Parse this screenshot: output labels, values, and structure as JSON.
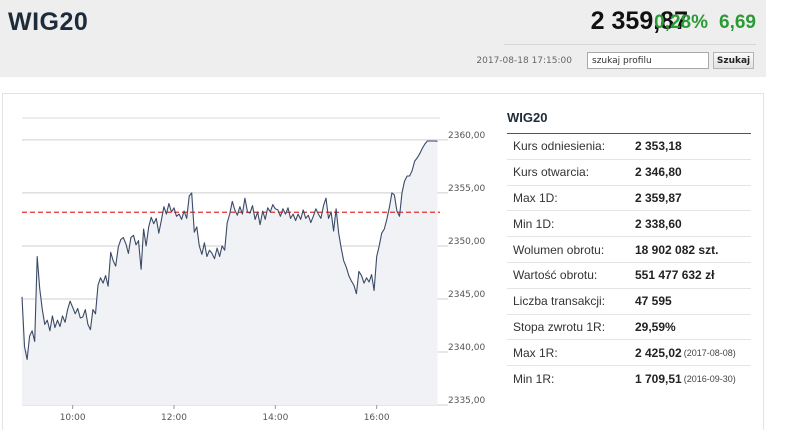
{
  "header": {
    "title": "WIG20",
    "price": "2 359,87",
    "change_pct": "0,28%",
    "change_abs": "6,69",
    "timestamp": "2017-08-18 17:15:00",
    "search_value": "szukaj profilu",
    "search_button": "Szukaj",
    "change_color": "#2a9a35"
  },
  "stats": {
    "title": "WIG20",
    "rows": [
      {
        "label": "Kurs odniesienia:",
        "value": "2 353,18",
        "date": ""
      },
      {
        "label": "Kurs otwarcia:",
        "value": "2 346,80",
        "date": ""
      },
      {
        "label": "Max 1D:",
        "value": "2 359,87",
        "date": ""
      },
      {
        "label": "Min 1D:",
        "value": "2 338,60",
        "date": ""
      },
      {
        "label": "Wolumen obrotu:",
        "value": "18 902 082 szt.",
        "date": ""
      },
      {
        "label": "Wartość obrotu:",
        "value": "551 477 632 zł",
        "date": ""
      },
      {
        "label": "Liczba transakcji:",
        "value": "47 595",
        "date": ""
      },
      {
        "label": "Stopa zwrotu 1R:",
        "value": "29,59%",
        "date": ""
      },
      {
        "label": "Max 1R:",
        "value": "2 425,02",
        "date": "(2017-08-08)"
      },
      {
        "label": "Min 1R:",
        "value": "1 709,51",
        "date": "(2016-09-30)"
      }
    ]
  },
  "chart_data": {
    "type": "area",
    "title": "",
    "xlabel": "",
    "ylabel": "",
    "x_tick_labels": [
      "10:00",
      "12:00",
      "14:00",
      "16:00"
    ],
    "y_tick_labels": [
      "2360,00",
      "2355,00",
      "2350,00",
      "2345,00",
      "2340,00",
      "2335,00"
    ],
    "y_ticks": [
      2360,
      2355,
      2350,
      2345,
      2340,
      2335
    ],
    "ylim": [
      2335,
      2361.5
    ],
    "xlim": [
      9.0,
      17.25
    ],
    "reference_line": {
      "value": 2353.18,
      "color": "#e03030",
      "style": "dashed"
    },
    "line_color": "#3b4a66",
    "fill_color": "#f0f2f5",
    "grid": true,
    "series": [
      {
        "x": [
          9.0,
          9.05,
          9.1,
          9.15,
          9.2,
          9.25,
          9.3,
          9.35,
          9.4,
          9.45,
          9.5,
          9.55,
          9.6,
          9.65,
          9.7,
          9.75,
          9.8,
          9.85,
          9.9,
          9.95,
          10.0,
          10.05,
          10.1,
          10.15,
          10.2,
          10.25,
          10.3,
          10.35,
          10.4,
          10.45,
          10.5,
          10.55,
          10.6,
          10.65,
          10.7,
          10.75,
          10.8,
          10.85,
          10.9,
          10.95,
          11.0,
          11.05,
          11.1,
          11.15,
          11.2,
          11.25,
          11.3,
          11.35,
          11.4,
          11.45,
          11.5,
          11.55,
          11.6,
          11.65,
          11.7,
          11.75,
          11.8,
          11.85,
          11.9,
          11.95,
          12.0,
          12.05,
          12.1,
          12.15,
          12.2,
          12.25,
          12.3,
          12.35,
          12.4,
          12.45,
          12.5,
          12.55,
          12.6,
          12.65,
          12.7,
          12.75,
          12.8,
          12.85,
          12.9,
          12.95,
          13.0,
          13.05,
          13.1,
          13.15,
          13.2,
          13.25,
          13.3,
          13.35,
          13.4,
          13.45,
          13.5,
          13.55,
          13.6,
          13.65,
          13.7,
          13.75,
          13.8,
          13.85,
          13.9,
          13.95,
          14.0,
          14.05,
          14.1,
          14.15,
          14.2,
          14.25,
          14.3,
          14.35,
          14.4,
          14.45,
          14.5,
          14.55,
          14.6,
          14.65,
          14.7,
          14.75,
          14.8,
          14.85,
          14.9,
          14.95,
          15.0,
          15.05,
          15.1,
          15.15,
          15.2,
          15.25,
          15.3,
          15.35,
          15.4,
          15.45,
          15.5,
          15.55,
          15.6,
          15.65,
          15.7,
          15.75,
          15.8,
          15.85,
          15.9,
          15.95,
          16.0,
          16.05,
          16.1,
          16.15,
          16.2,
          16.25,
          16.3,
          16.35,
          16.4,
          16.45,
          16.5,
          16.55,
          16.6,
          16.65,
          16.7,
          16.75,
          16.8,
          16.85,
          16.9,
          16.95,
          17.0,
          17.05,
          17.1,
          17.15,
          17.2
        ],
        "y": [
          2345.2,
          2340.5,
          2339.3,
          2341.5,
          2342.0,
          2341.0,
          2349.0,
          2346.0,
          2344.0,
          2342.6,
          2343.0,
          2342.0,
          2343.4,
          2342.3,
          2343.0,
          2342.4,
          2343.4,
          2342.8,
          2344.0,
          2344.8,
          2344.2,
          2343.6,
          2344.1,
          2343.2,
          2343.3,
          2344.0,
          2342.6,
          2342.1,
          2344.0,
          2343.6,
          2346.3,
          2347.0,
          2346.5,
          2347.2,
          2346.2,
          2349.4,
          2348.6,
          2348.1,
          2349.9,
          2350.6,
          2350.8,
          2350.2,
          2349.3,
          2350.8,
          2351.0,
          2350.1,
          2350.5,
          2347.8,
          2351.6,
          2350.0,
          2351.8,
          2352.7,
          2352.1,
          2352.6,
          2351.2,
          2352.4,
          2353.7,
          2353.0,
          2354.0,
          2353.2,
          2353.6,
          2352.8,
          2353.0,
          2352.5,
          2353.3,
          2352.6,
          2354.7,
          2355.0,
          2351.3,
          2351.8,
          2350.0,
          2349.2,
          2350.3,
          2349.0,
          2349.6,
          2349.3,
          2348.8,
          2349.8,
          2349.0,
          2350.0,
          2349.6,
          2352.2,
          2353.0,
          2354.2,
          2353.4,
          2352.9,
          2353.7,
          2353.0,
          2354.5,
          2353.2,
          2353.1,
          2353.8,
          2352.5,
          2353.2,
          2352.0,
          2353.3,
          2352.5,
          2353.6,
          2353.2,
          2353.9,
          2353.5,
          2353.4,
          2352.8,
          2353.5,
          2353.0,
          2353.6,
          2352.6,
          2353.0,
          2352.4,
          2353.0,
          2352.5,
          2353.4,
          2352.6,
          2352.9,
          2352.2,
          2352.8,
          2353.5,
          2353.0,
          2352.6,
          2353.8,
          2354.5,
          2352.6,
          2353.2,
          2351.4,
          2353.5,
          2351.2,
          2349.8,
          2348.6,
          2348.0,
          2347.2,
          2346.7,
          2346.3,
          2345.5,
          2347.6,
          2347.2,
          2346.5,
          2347.0,
          2346.6,
          2347.3,
          2345.8,
          2349.0,
          2350.0,
          2351.2,
          2351.6,
          2352.5,
          2353.6,
          2355.0,
          2354.8,
          2353.3,
          2352.8,
          2355.0,
          2356.1,
          2356.6,
          2356.6,
          2357.1,
          2358.0,
          2358.3,
          2358.7,
          2359.2,
          2359.6,
          2359.9,
          2359.9,
          2359.9,
          2359.9,
          2359.87
        ]
      }
    ]
  }
}
